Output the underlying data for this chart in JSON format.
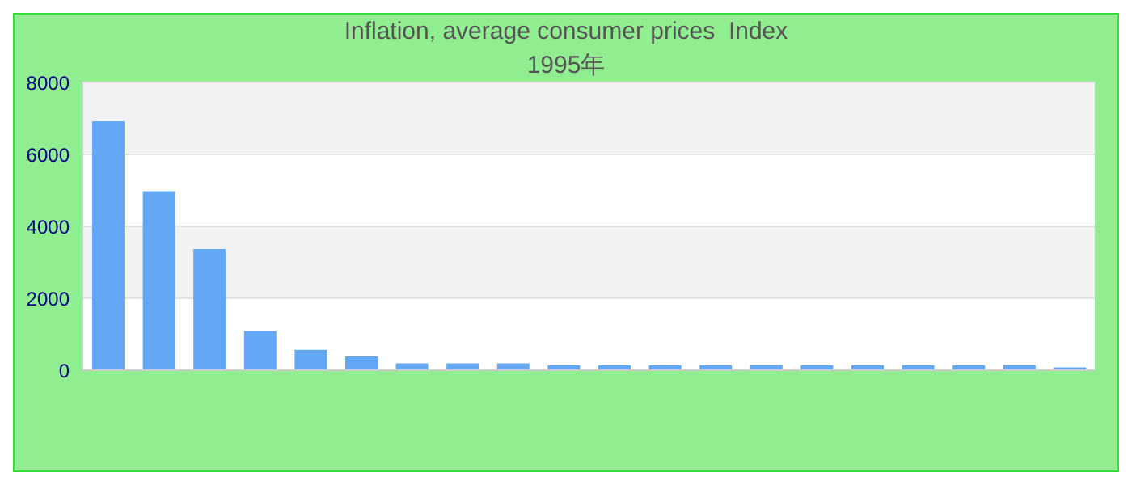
{
  "chart_data": {
    "type": "bar",
    "title": "Inflation, average consumer prices  Index",
    "subtitle": "1995年",
    "categories": [
      null,
      null,
      null,
      null,
      null,
      null,
      null,
      null,
      null,
      null,
      null,
      null,
      null,
      null,
      null,
      null,
      null,
      null,
      null,
      null
    ],
    "values": [
      6920,
      4980,
      3370,
      1090,
      570,
      380,
      190,
      190,
      190,
      140,
      140,
      140,
      140,
      140,
      140,
      140,
      140,
      140,
      140,
      80
    ],
    "color": "#62a8f5",
    "ylim": [
      0,
      8000
    ],
    "yticks": [
      0,
      2000,
      4000,
      6000,
      8000
    ],
    "grid": "y"
  }
}
